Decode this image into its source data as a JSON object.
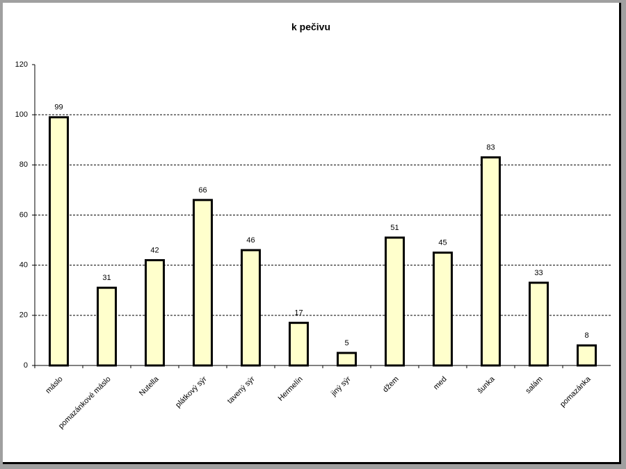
{
  "chart_data": {
    "type": "bar",
    "title": "k pečivu",
    "categories": [
      "máslo",
      "pomazánkové máslo",
      "Nutella",
      "plátkový sýr",
      "tavený sýr",
      "Hermelín",
      "jiný sýr",
      "džem",
      "med",
      "šunka",
      "salám",
      "pomazánka"
    ],
    "values": [
      99,
      31,
      42,
      66,
      46,
      17,
      5,
      51,
      45,
      83,
      33,
      8
    ],
    "color": "#ffffcc",
    "ylim": [
      0,
      120
    ],
    "yticks": [
      0,
      20,
      40,
      60,
      80,
      100,
      120
    ],
    "grid": true
  }
}
